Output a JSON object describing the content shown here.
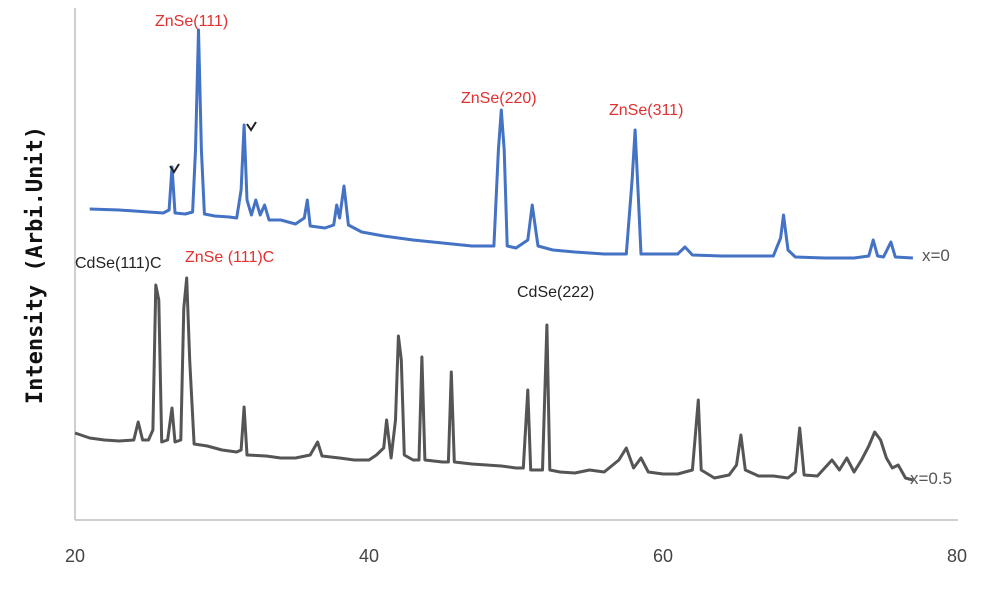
{
  "chart_data": {
    "type": "line",
    "xlim": [
      20,
      80
    ],
    "x_ticks": [
      "20",
      "40",
      "60",
      "80"
    ],
    "ylabel": "Intensity (Arbi.Unit)",
    "xlabel": "",
    "grid": false,
    "y_ticks_visible": false,
    "series": [
      {
        "name": "x=0",
        "color": "#4472C4",
        "points": [
          [
            21.0,
            209
          ],
          [
            23.0,
            210
          ],
          [
            25.0,
            212
          ],
          [
            26.0,
            213
          ],
          [
            26.4,
            210
          ],
          [
            26.6,
            167
          ],
          [
            26.8,
            213
          ],
          [
            27.5,
            214
          ],
          [
            28.0,
            212
          ],
          [
            28.2,
            150
          ],
          [
            28.4,
            30
          ],
          [
            28.6,
            150
          ],
          [
            28.8,
            214
          ],
          [
            29.5,
            216
          ],
          [
            30.5,
            217
          ],
          [
            31.0,
            218
          ],
          [
            31.3,
            190
          ],
          [
            31.5,
            125
          ],
          [
            31.7,
            200
          ],
          [
            32.0,
            215
          ],
          [
            32.3,
            200
          ],
          [
            32.6,
            215
          ],
          [
            32.9,
            205
          ],
          [
            33.2,
            220
          ],
          [
            34.0,
            220
          ],
          [
            35.0,
            224
          ],
          [
            35.6,
            218
          ],
          [
            35.8,
            200
          ],
          [
            36.0,
            226
          ],
          [
            37.0,
            228
          ],
          [
            37.6,
            225
          ],
          [
            37.8,
            205
          ],
          [
            38.0,
            218
          ],
          [
            38.3,
            186
          ],
          [
            38.6,
            225
          ],
          [
            39.5,
            232
          ],
          [
            41.0,
            236
          ],
          [
            43.0,
            240
          ],
          [
            45.0,
            243
          ],
          [
            47.0,
            246
          ],
          [
            48.5,
            246
          ],
          [
            48.8,
            150
          ],
          [
            49.0,
            110
          ],
          [
            49.2,
            150
          ],
          [
            49.4,
            246
          ],
          [
            50.0,
            248
          ],
          [
            50.8,
            240
          ],
          [
            51.1,
            205
          ],
          [
            51.5,
            246
          ],
          [
            52.5,
            250
          ],
          [
            54.0,
            252
          ],
          [
            56.0,
            254
          ],
          [
            57.5,
            254
          ],
          [
            57.9,
            180
          ],
          [
            58.1,
            130
          ],
          [
            58.3,
            190
          ],
          [
            58.5,
            254
          ],
          [
            59.5,
            254
          ],
          [
            61.0,
            254
          ],
          [
            61.5,
            247
          ],
          [
            62.0,
            255
          ],
          [
            64.0,
            256
          ],
          [
            66.0,
            256
          ],
          [
            67.5,
            256
          ],
          [
            68.0,
            238
          ],
          [
            68.2,
            215
          ],
          [
            68.5,
            250
          ],
          [
            69.0,
            257
          ],
          [
            71.0,
            258
          ],
          [
            73.0,
            258
          ],
          [
            74.0,
            256
          ],
          [
            74.3,
            240
          ],
          [
            74.6,
            256
          ],
          [
            75.0,
            257
          ],
          [
            75.5,
            242
          ],
          [
            75.8,
            257
          ],
          [
            77.0,
            258
          ]
        ]
      },
      {
        "name": "x=0.5",
        "color": "#555555",
        "points": [
          [
            20.0,
            433
          ],
          [
            21.0,
            438
          ],
          [
            22.0,
            440
          ],
          [
            23.0,
            441
          ],
          [
            24.0,
            440
          ],
          [
            24.3,
            422
          ],
          [
            24.6,
            440
          ],
          [
            25.0,
            440
          ],
          [
            25.3,
            430
          ],
          [
            25.5,
            285
          ],
          [
            25.7,
            300
          ],
          [
            25.9,
            442
          ],
          [
            26.3,
            440
          ],
          [
            26.6,
            408
          ],
          [
            26.8,
            442
          ],
          [
            27.2,
            440
          ],
          [
            27.4,
            308
          ],
          [
            27.6,
            278
          ],
          [
            27.8,
            360
          ],
          [
            28.1,
            444
          ],
          [
            29.0,
            446
          ],
          [
            30.0,
            450
          ],
          [
            31.0,
            452
          ],
          [
            31.3,
            450
          ],
          [
            31.5,
            407
          ],
          [
            31.7,
            455
          ],
          [
            33.0,
            456
          ],
          [
            34.0,
            458
          ],
          [
            35.0,
            458
          ],
          [
            36.0,
            455
          ],
          [
            36.5,
            442
          ],
          [
            36.8,
            456
          ],
          [
            38.0,
            458
          ],
          [
            39.0,
            460
          ],
          [
            40.0,
            460
          ],
          [
            40.5,
            455
          ],
          [
            41.0,
            448
          ],
          [
            41.2,
            420
          ],
          [
            41.5,
            458
          ],
          [
            41.8,
            420
          ],
          [
            42.0,
            336
          ],
          [
            42.2,
            360
          ],
          [
            42.4,
            455
          ],
          [
            43.0,
            460
          ],
          [
            43.4,
            460
          ],
          [
            43.6,
            357
          ],
          [
            43.8,
            460
          ],
          [
            45.0,
            462
          ],
          [
            45.4,
            462
          ],
          [
            45.6,
            372
          ],
          [
            45.8,
            462
          ],
          [
            47.0,
            464
          ],
          [
            49.0,
            466
          ],
          [
            50.0,
            468
          ],
          [
            50.5,
            468
          ],
          [
            50.8,
            390
          ],
          [
            51.0,
            470
          ],
          [
            51.8,
            470
          ],
          [
            52.1,
            325
          ],
          [
            52.3,
            470
          ],
          [
            53.0,
            472
          ],
          [
            54.0,
            473
          ],
          [
            55.0,
            470
          ],
          [
            56.0,
            472
          ],
          [
            57.0,
            460
          ],
          [
            57.5,
            448
          ],
          [
            58.0,
            468
          ],
          [
            58.5,
            458
          ],
          [
            59.0,
            472
          ],
          [
            60.0,
            474
          ],
          [
            61.0,
            474
          ],
          [
            62.0,
            470
          ],
          [
            62.4,
            400
          ],
          [
            62.6,
            470
          ],
          [
            63.5,
            478
          ],
          [
            64.5,
            475
          ],
          [
            65.0,
            465
          ],
          [
            65.3,
            435
          ],
          [
            65.6,
            470
          ],
          [
            66.5,
            476
          ],
          [
            67.5,
            476
          ],
          [
            68.5,
            478
          ],
          [
            69.0,
            472
          ],
          [
            69.3,
            428
          ],
          [
            69.6,
            475
          ],
          [
            70.5,
            476
          ],
          [
            71.0,
            468
          ],
          [
            71.5,
            460
          ],
          [
            72.0,
            470
          ],
          [
            72.5,
            458
          ],
          [
            73.0,
            472
          ],
          [
            73.5,
            460
          ],
          [
            74.0,
            446
          ],
          [
            74.4,
            432
          ],
          [
            74.8,
            440
          ],
          [
            75.2,
            458
          ],
          [
            75.6,
            468
          ],
          [
            76.0,
            465
          ],
          [
            76.5,
            478
          ],
          [
            77.0,
            480
          ]
        ]
      }
    ],
    "annotations": [
      {
        "text": "ZnSe(111)",
        "color": "#E03030"
      },
      {
        "text": "ZnSe(220)",
        "color": "#E03030"
      },
      {
        "text": "ZnSe(311)",
        "color": "#E03030"
      },
      {
        "text": "CdSe(111)C",
        "color": "#222222"
      },
      {
        "text": "ZnSe (111)C",
        "color": "#E03030"
      },
      {
        "text": "CdSe(222)",
        "color": "#222222"
      }
    ],
    "series_labels": [
      "x=0",
      "x=0.5"
    ]
  }
}
